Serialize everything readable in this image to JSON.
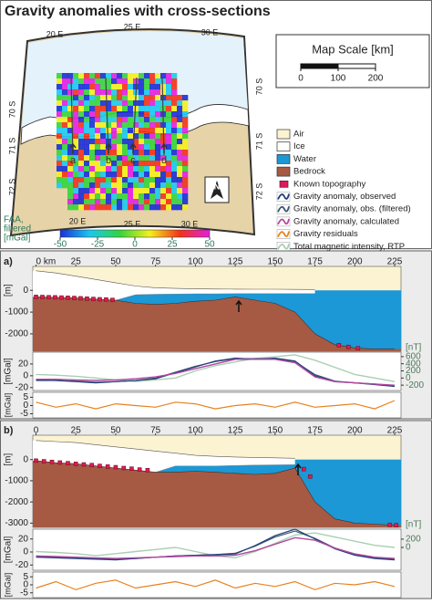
{
  "title": "Gravity anomalies with cross-sections",
  "map": {
    "lon_labels_top": [
      "20 E",
      "25 E",
      "30 E"
    ],
    "lon_labels_bottom": [
      "20 E",
      "25 E",
      "30 E"
    ],
    "lat_labels_left": [
      "70 S",
      "71 S",
      "72 S"
    ],
    "lat_labels_right": [
      "70 S",
      "71 S",
      "72 S"
    ],
    "profile_labels": [
      "a",
      "b",
      "c",
      "d"
    ],
    "north": "N",
    "scale": {
      "title": "Map Scale [km]",
      "range": [
        0,
        200
      ],
      "ticks": [
        0,
        100,
        200
      ]
    },
    "colorbar": {
      "label": [
        "FAA,",
        "filtered",
        "[mGal]"
      ],
      "range": [
        -50,
        50
      ],
      "ticks": [
        -50,
        -25,
        0,
        25,
        50
      ],
      "colors": [
        "#1a2fd6",
        "#19c9f0",
        "#35d43a",
        "#f4f01c",
        "#f23218",
        "#e21fe0"
      ]
    }
  },
  "legend": [
    {
      "name": "Air",
      "color": "#fcf3d2",
      "kind": "fill"
    },
    {
      "name": "Ice",
      "color": "#ffffff",
      "kind": "fill"
    },
    {
      "name": "Water",
      "color": "#1b98d5",
      "kind": "fill"
    },
    {
      "name": "Bedrock",
      "color": "#a65a43",
      "kind": "fill"
    },
    {
      "name": "Known topography",
      "color": "#e2195a",
      "kind": "fill"
    },
    {
      "name": "Gravity anomaly, observed",
      "color": "#22407a",
      "kind": "line"
    },
    {
      "name": "Gravity anomaly, obs. (filtered)",
      "color": "#3b5670",
      "kind": "line"
    },
    {
      "name": "Gravity anomaly, calculated",
      "color": "#b3479f",
      "kind": "line"
    },
    {
      "name": "Gravity residuals",
      "color": "#e8821f",
      "kind": "line"
    },
    {
      "name": "Total magnetic intensity, RTP",
      "color": "#a9cfb2",
      "kind": "line"
    }
  ],
  "profiles": [
    {
      "label": "a)",
      "x": [
        0,
        12.5,
        25,
        37.5,
        50,
        62.5,
        75,
        87.5,
        100,
        112.5,
        125,
        137.5,
        150,
        162.5,
        175,
        187.5,
        200,
        212.5,
        225
      ],
      "xlim": [
        -2,
        229
      ],
      "xticks": [
        {
          "value": 0,
          "label": "0 km"
        },
        25,
        50,
        75,
        100,
        125,
        150,
        175,
        200,
        225
      ],
      "depth": {
        "unit": "[m]",
        "ylim": [
          -2800,
          1100
        ],
        "yticks": [
          0,
          -1000,
          -2000
        ],
        "ice_surface": [
          900,
          800,
          650,
          500,
          350,
          200,
          120,
          90,
          70,
          60,
          55,
          50,
          50,
          45,
          40,
          null,
          null,
          null,
          null
        ],
        "ice_base": [
          -300,
          -320,
          -350,
          -400,
          -450,
          -200,
          -180,
          -170,
          -160,
          -160,
          -150,
          -150,
          -150,
          -150,
          -150,
          null,
          null,
          null,
          null
        ],
        "bedrock": [
          -300,
          -320,
          -350,
          -400,
          -450,
          -600,
          -650,
          -600,
          -500,
          -450,
          -300,
          -450,
          -600,
          -1000,
          -2000,
          -2500,
          -2650,
          -2700,
          -2700
        ],
        "known_x": [
          0,
          4,
          8,
          12,
          16,
          20,
          24,
          28,
          32,
          36,
          40,
          44,
          48,
          190,
          196,
          202
        ],
        "known_y": [
          -300,
          -305,
          -315,
          -320,
          -330,
          -340,
          -350,
          -365,
          -380,
          -395,
          -410,
          -420,
          -440,
          -2520,
          -2600,
          -2660
        ]
      },
      "gravity": {
        "unit": "[mGal]",
        "ylim": [
          -25,
          40
        ],
        "yticks": [
          20,
          0,
          -20
        ],
        "observed": [
          -8,
          -8,
          -10,
          -12,
          -10,
          -8,
          -5,
          5,
          15,
          25,
          30,
          28,
          30,
          25,
          0,
          -10,
          -12,
          -15,
          -18
        ],
        "filtered": [
          -7,
          -8,
          -9,
          -11,
          -10,
          -8,
          -4,
          6,
          16,
          24,
          29,
          29,
          29,
          24,
          2,
          -9,
          -12,
          -14,
          -17
        ],
        "calculated": [
          -6,
          -6,
          -7,
          -8,
          -7,
          -5,
          -2,
          4,
          12,
          20,
          28,
          28,
          28,
          22,
          -2,
          -10,
          -12,
          -14,
          -16
        ]
      },
      "magnetic": {
        "unit": "[nT]",
        "ylim": [
          -350,
          725
        ],
        "yticks": [
          600,
          400,
          200,
          0,
          -200
        ],
        "values": [
          100,
          80,
          50,
          0,
          -50,
          -100,
          -50,
          0,
          200,
          350,
          450,
          550,
          600,
          650,
          500,
          300,
          100,
          0,
          -100
        ]
      },
      "residuals": {
        "unit": "[mGal]",
        "ylim": [
          -7.5,
          8
        ],
        "yticks": [
          5,
          0,
          -5
        ],
        "values": [
          2,
          -1,
          1,
          -2,
          1,
          0,
          -1,
          2,
          1,
          -2,
          0,
          1,
          -1,
          2,
          -1,
          0,
          1,
          -2,
          3
        ]
      }
    },
    {
      "label": "b)",
      "x": [
        0,
        12.5,
        25,
        37.5,
        50,
        62.5,
        75,
        87.5,
        100,
        112.5,
        125,
        137.5,
        150,
        162.5,
        175,
        187.5,
        200,
        212.5,
        225
      ],
      "xlim": [
        -2,
        229
      ],
      "xticks": [
        0,
        25,
        50,
        75,
        100,
        125,
        150,
        175,
        200,
        225
      ],
      "depth": {
        "unit": "[m]",
        "ylim": [
          -3200,
          1150
        ],
        "yticks": [
          0,
          -1000,
          -2000,
          -3000
        ],
        "ice_surface": [
          900,
          850,
          800,
          700,
          600,
          500,
          400,
          300,
          200,
          150,
          120,
          100,
          80,
          60,
          null,
          null,
          null,
          null,
          null
        ],
        "ice_base": [
          -50,
          -150,
          -200,
          -300,
          -400,
          -500,
          -600,
          -300,
          -300,
          -300,
          -280,
          -260,
          -250,
          -240,
          null,
          null,
          null,
          null,
          null
        ],
        "bedrock": [
          -50,
          -150,
          -200,
          -300,
          -400,
          -500,
          -600,
          -600,
          -550,
          -600,
          -650,
          -700,
          -650,
          -400,
          -2000,
          -2800,
          -3000,
          -3050,
          -3100
        ],
        "known_x": [
          0,
          5,
          10,
          15,
          20,
          25,
          30,
          35,
          40,
          45,
          50,
          55,
          60,
          65,
          70,
          168,
          172,
          222,
          226
        ],
        "known_y": [
          -50,
          -80,
          -110,
          -140,
          -170,
          -200,
          -230,
          -260,
          -300,
          -330,
          -360,
          -400,
          -430,
          -470,
          -500,
          -450,
          -800,
          -3080,
          -3100
        ]
      },
      "gravity": {
        "unit": "[mGal]",
        "ylim": [
          -28,
          35
        ],
        "yticks": [
          20,
          0,
          -20
        ],
        "observed": [
          -8,
          -9,
          -10,
          -11,
          -12,
          -10,
          -8,
          -6,
          -5,
          -4,
          -3,
          10,
          25,
          35,
          20,
          5,
          -5,
          -10,
          -12
        ],
        "filtered": [
          -7,
          -8,
          -9,
          -10,
          -11,
          -10,
          -8,
          -6,
          -5,
          -4,
          -2,
          9,
          23,
          32,
          21,
          6,
          -4,
          -9,
          -11
        ],
        "calculated": [
          -6,
          -7,
          -8,
          -9,
          -10,
          -9,
          -8,
          -7,
          -6,
          -6,
          -5,
          2,
          12,
          22,
          18,
          6,
          -3,
          -8,
          -10
        ]
      },
      "magnetic": {
        "unit": "[nT]",
        "ylim": [
          -550,
          440
        ],
        "yticks": [
          200,
          0
        ],
        "values": [
          -100,
          -120,
          -150,
          -200,
          -150,
          -100,
          -50,
          0,
          -100,
          -200,
          -250,
          -100,
          100,
          300,
          350,
          250,
          150,
          50,
          0
        ]
      },
      "residuals": {
        "unit": "[mGal]",
        "ylim": [
          -8,
          8
        ],
        "yticks": [
          5,
          0,
          -5
        ],
        "values": [
          -2,
          2,
          -3,
          1,
          3,
          -2,
          0,
          2,
          -1,
          3,
          -2,
          1,
          -1,
          2,
          -3,
          1,
          0,
          2,
          -1
        ]
      }
    }
  ]
}
